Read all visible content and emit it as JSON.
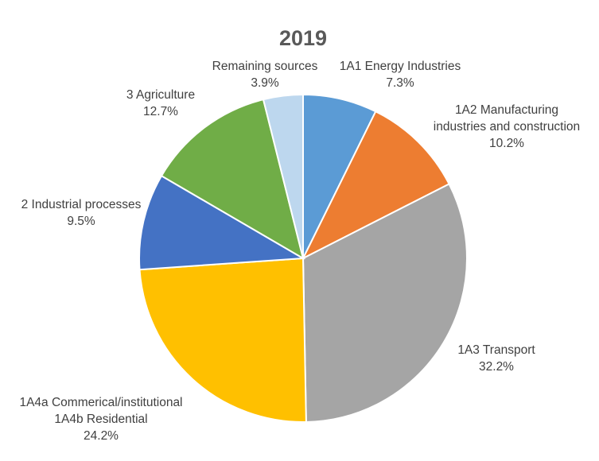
{
  "chart_data": {
    "type": "pie",
    "title": "2019",
    "slices": [
      {
        "label": "1A1 Energy Industries",
        "pct_label": "7.3%",
        "value": 7.3,
        "color": "#5B9BD5"
      },
      {
        "label": "1A2 Manufacturing industries and construction",
        "pct_label": "10.2%",
        "value": 10.2,
        "color": "#ED7D31"
      },
      {
        "label": "1A3 Transport",
        "pct_label": "32.2%",
        "value": 32.2,
        "color": "#A5A5A5"
      },
      {
        "label": "1A4a Commerical/institutional 1A4b Residential",
        "pct_label": "24.2%",
        "value": 24.2,
        "color": "#FFC000"
      },
      {
        "label": "2 Industrial processes",
        "pct_label": "9.5%",
        "value": 9.5,
        "color": "#4472C4"
      },
      {
        "label": "3 Agriculture",
        "pct_label": "12.7%",
        "value": 12.7,
        "color": "#70AD47"
      },
      {
        "label": "Remaining sources",
        "pct_label": "3.9%",
        "value": 3.9,
        "color": "#BDD7EE"
      }
    ],
    "start_angle": "12 o'clock",
    "direction": "clockwise",
    "legend": "none"
  }
}
